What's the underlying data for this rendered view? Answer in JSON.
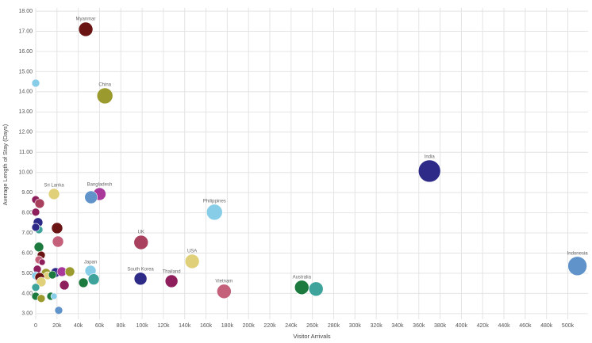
{
  "chart_data": {
    "type": "scatter",
    "x_label": "Visitor Arrivals",
    "y_label": "Average Length of Stay (Days)",
    "xlim": [
      0,
      519000
    ],
    "ylim": [
      2.72,
      18.16
    ],
    "xticks": [
      0,
      {
        "value": 20000,
        "label": "20k"
      },
      {
        "value": 40000,
        "label": "40k"
      },
      {
        "value": 60000,
        "label": "60k"
      },
      {
        "value": 80000,
        "label": "80k"
      },
      {
        "value": 100000,
        "label": "100k"
      },
      {
        "value": 120000,
        "label": "120k"
      },
      {
        "value": 140000,
        "label": "140k"
      },
      {
        "value": 160000,
        "label": "160k"
      },
      {
        "value": 180000,
        "label": "180k"
      },
      {
        "value": 200000,
        "label": "200k"
      },
      {
        "value": 220000,
        "label": "220k"
      },
      {
        "value": 240000,
        "label": "240k"
      },
      {
        "value": 260000,
        "label": "260k"
      },
      {
        "value": 280000,
        "label": "280k"
      },
      {
        "value": 300000,
        "label": "300k"
      },
      {
        "value": 320000,
        "label": "320k"
      },
      {
        "value": 340000,
        "label": "340k"
      },
      {
        "value": 360000,
        "label": "360k"
      },
      {
        "value": 380000,
        "label": "380k"
      },
      {
        "value": 400000,
        "label": "400k"
      },
      {
        "value": 420000,
        "label": "420k"
      },
      {
        "value": 440000,
        "label": "440k"
      },
      {
        "value": 460000,
        "label": "460k"
      },
      {
        "value": 480000,
        "label": "480k"
      },
      {
        "value": 500000,
        "label": "500k"
      }
    ],
    "yticks": [
      {
        "value": 3,
        "label": "3.00"
      },
      {
        "value": 4,
        "label": "4.00"
      },
      {
        "value": 5,
        "label": "5.00"
      },
      {
        "value": 6,
        "label": "6.00"
      },
      {
        "value": 7,
        "label": "7.00"
      },
      {
        "value": 8,
        "label": "8.00"
      },
      {
        "value": 9,
        "label": "9.00"
      },
      {
        "value": 10,
        "label": "10.00"
      },
      {
        "value": 11,
        "label": "11.00"
      },
      {
        "value": 12,
        "label": "12.00"
      },
      {
        "value": 13,
        "label": "13.00"
      },
      {
        "value": 14,
        "label": "14.00"
      },
      {
        "value": 15,
        "label": "15.00"
      },
      {
        "value": 16,
        "label": "16.00"
      },
      {
        "value": 17,
        "label": "17.00"
      },
      {
        "value": 18,
        "label": "18.00"
      }
    ],
    "grid": true,
    "points": [
      {
        "label": "Myanmar",
        "x": 47000,
        "y": 17.1,
        "size": 9,
        "color": "#6b1414"
      },
      {
        "label": "China",
        "x": 65000,
        "y": 13.8,
        "size": 10,
        "color": "#9a9a2e"
      },
      {
        "label": "India",
        "x": 370000,
        "y": 10.07,
        "size": 14,
        "color": "#2e2a87"
      },
      {
        "label": "Bangladesh",
        "x": 60000,
        "y": 8.93,
        "size": 8,
        "color": "#a8399b"
      },
      {
        "x": 52000,
        "y": 8.77,
        "size": 8,
        "color": "#5f93c9"
      },
      {
        "label": "Sri Lanka",
        "x": 17200,
        "y": 8.93,
        "size": 7,
        "color": "#e0d07a"
      },
      {
        "label": "Philippines",
        "x": 168000,
        "y": 8.03,
        "size": 10,
        "color": "#87cde8"
      },
      {
        "label": "UK",
        "x": 99000,
        "y": 6.53,
        "size": 9,
        "color": "#a8405e"
      },
      {
        "label": "USA",
        "x": 147000,
        "y": 5.59,
        "size": 9,
        "color": "#e0d07a"
      },
      {
        "label": "Japan",
        "x": 51500,
        "y": 5.12,
        "size": 7,
        "color": "#87cde8"
      },
      {
        "x": 54500,
        "y": 4.7,
        "size": 7,
        "color": "#3ea39a"
      },
      {
        "label": "South Korea",
        "x": 98500,
        "y": 4.73,
        "size": 8,
        "color": "#2e2a87"
      },
      {
        "label": "Thailand",
        "x": 127600,
        "y": 4.61,
        "size": 8,
        "color": "#8e1f5c"
      },
      {
        "label": "Vietnam",
        "x": 177000,
        "y": 4.1,
        "size": 9,
        "color": "#c4607a"
      },
      {
        "label": "Australia",
        "x": 250000,
        "y": 4.3,
        "size": 9,
        "color": "#1d7a3e"
      },
      {
        "x": 263400,
        "y": 4.22,
        "size": 9,
        "color": "#3ea39a"
      },
      {
        "label": "Indonesia",
        "x": 509000,
        "y": 5.36,
        "size": 12,
        "color": "#5f93c9"
      },
      {
        "x": 0,
        "y": 14.43,
        "size": 5,
        "color": "#87cde8"
      },
      {
        "x": 0,
        "y": 8.65,
        "size": 5,
        "color": "#8e1f5c"
      },
      {
        "x": 3700,
        "y": 8.46,
        "size": 6,
        "color": "#a8405e"
      },
      {
        "x": 0,
        "y": 8.03,
        "size": 5,
        "color": "#8e1f5c"
      },
      {
        "x": 20100,
        "y": 7.24,
        "size": 7,
        "color": "#6b1414"
      },
      {
        "x": 2200,
        "y": 7.52,
        "size": 6,
        "color": "#2e2a87"
      },
      {
        "x": 3000,
        "y": 7.16,
        "size": 5,
        "color": "#3ea39a"
      },
      {
        "x": 0,
        "y": 7.28,
        "size": 5,
        "color": "#2e2a87"
      },
      {
        "x": 20900,
        "y": 6.57,
        "size": 7,
        "color": "#c4607a"
      },
      {
        "x": 3000,
        "y": 6.3,
        "size": 6,
        "color": "#1d7a3e"
      },
      {
        "x": 5200,
        "y": 5.9,
        "size": 5,
        "color": "#6b1414"
      },
      {
        "x": 3000,
        "y": 5.67,
        "size": 5,
        "color": "#c4607a"
      },
      {
        "x": 6000,
        "y": 5.55,
        "size": 4,
        "color": "#8e1f5c"
      },
      {
        "x": 1500,
        "y": 5.2,
        "size": 5,
        "color": "#8e1f5c"
      },
      {
        "x": 0,
        "y": 4.88,
        "size": 5,
        "color": "#87cde8"
      },
      {
        "x": 9700,
        "y": 5.0,
        "size": 6,
        "color": "#9a9a2e"
      },
      {
        "x": 11200,
        "y": 4.88,
        "size": 5,
        "color": "#e0d07a"
      },
      {
        "x": 18700,
        "y": 5.04,
        "size": 6,
        "color": "#2e2a87"
      },
      {
        "x": 24600,
        "y": 5.08,
        "size": 6,
        "color": "#a8399b"
      },
      {
        "x": 32100,
        "y": 5.08,
        "size": 6,
        "color": "#9a9a2e"
      },
      {
        "x": 15700,
        "y": 4.92,
        "size": 5,
        "color": "#1d7a3e"
      },
      {
        "x": 3700,
        "y": 4.8,
        "size": 6,
        "color": "#6b1414"
      },
      {
        "x": 5200,
        "y": 4.57,
        "size": 6,
        "color": "#e0d07a"
      },
      {
        "x": 26900,
        "y": 4.41,
        "size": 6,
        "color": "#8e1f5c"
      },
      {
        "x": 44800,
        "y": 4.53,
        "size": 6,
        "color": "#1d7a3e"
      },
      {
        "x": 0,
        "y": 4.3,
        "size": 5,
        "color": "#3ea39a"
      },
      {
        "x": 0,
        "y": 3.86,
        "size": 5,
        "color": "#1d7a3e"
      },
      {
        "x": 5200,
        "y": 3.75,
        "size": 5,
        "color": "#9a9a2e"
      },
      {
        "x": 14200,
        "y": 3.86,
        "size": 5,
        "color": "#1d7a3e"
      },
      {
        "x": 17200,
        "y": 3.86,
        "size": 4,
        "color": "#87cde8"
      },
      {
        "x": 21600,
        "y": 3.16,
        "size": 5,
        "color": "#5f93c9"
      }
    ]
  }
}
